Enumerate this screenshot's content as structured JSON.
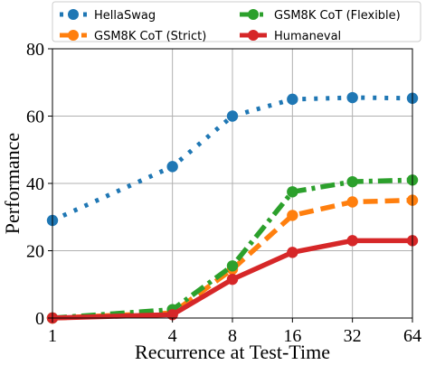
{
  "chart_data": {
    "type": "line",
    "title": "",
    "xlabel": "Recurrence at Test-Time",
    "ylabel": "Performance",
    "xscale": "log2",
    "x": [
      1,
      4,
      8,
      16,
      32,
      64
    ],
    "xticks": [
      "1",
      "4",
      "8",
      "16",
      "32",
      "64"
    ],
    "yticks": [
      "0",
      "20",
      "40",
      "60",
      "80"
    ],
    "ylim": [
      0,
      80
    ],
    "grid": true,
    "legend_position": "top",
    "series": [
      {
        "name": "HellaSwag",
        "color": "#1f77b4",
        "line_style": "dotted",
        "values": [
          29,
          45,
          60,
          65,
          65.5,
          65.3
        ]
      },
      {
        "name": "GSM8K CoT (Strict)",
        "color": "#ff7f0e",
        "line_style": "dashed",
        "values": [
          0,
          1.5,
          14.5,
          30.5,
          34.5,
          35
        ]
      },
      {
        "name": "GSM8K CoT (Flexible)",
        "color": "#2ca02c",
        "line_style": "dashdot",
        "values": [
          0,
          2.5,
          15.5,
          37.5,
          40.5,
          41
        ]
      },
      {
        "name": "Humaneval",
        "color": "#d62728",
        "line_style": "solid",
        "values": [
          0,
          1,
          11.5,
          19.5,
          23,
          23
        ]
      }
    ]
  }
}
